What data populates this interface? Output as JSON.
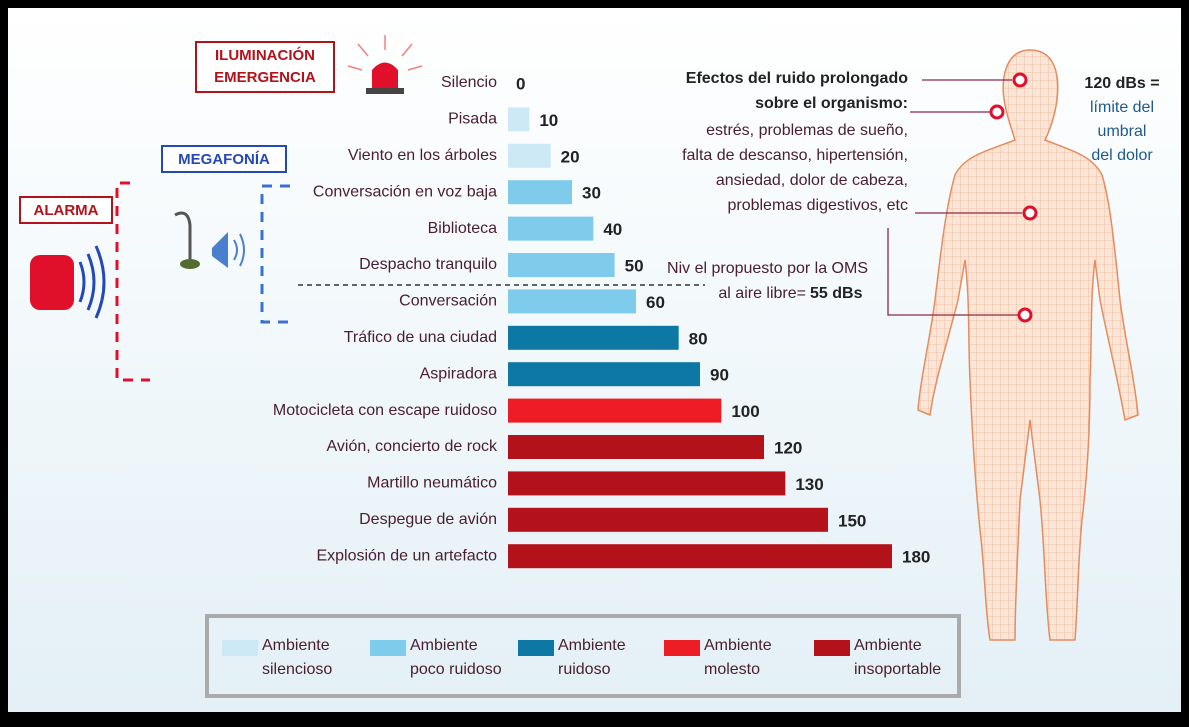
{
  "chart_data": {
    "type": "bar",
    "orientation": "horizontal",
    "categories": [
      "Silencio",
      "Pisada",
      "Viento en los árboles",
      "Conversación en voz baja",
      "Biblioteca",
      "Despacho tranquilo",
      "Conversación",
      "Tráfico de una ciudad",
      "Aspiradora",
      "Motocicleta con escape ruidoso",
      "Avión, concierto de rock",
      "Martillo neumático",
      "Despegue de avión",
      "Explosión de un artefacto"
    ],
    "series": [
      {
        "name": "Ambiente silencioso",
        "color": "#cde9f6",
        "values": [
          0,
          10,
          20,
          null,
          null,
          null,
          null,
          null,
          null,
          null,
          null,
          null,
          null,
          null
        ]
      },
      {
        "name": "Ambiente poco ruidoso",
        "color": "#7ecbeb",
        "values": [
          null,
          null,
          null,
          30,
          40,
          50,
          60,
          null,
          null,
          null,
          null,
          null,
          null,
          null
        ]
      },
      {
        "name": "Ambiente ruidoso",
        "color": "#0e78a4",
        "values": [
          null,
          null,
          null,
          null,
          null,
          null,
          null,
          80,
          90,
          null,
          null,
          null,
          null,
          null
        ]
      },
      {
        "name": "Ambiente molesto",
        "color": "#ee1c25",
        "values": [
          null,
          null,
          null,
          null,
          null,
          null,
          null,
          null,
          null,
          100,
          null,
          null,
          null,
          null
        ]
      },
      {
        "name": "Ambiente insoportable",
        "color": "#b3121b",
        "values": [
          null,
          null,
          null,
          null,
          null,
          null,
          null,
          null,
          null,
          null,
          120,
          130,
          150,
          180
        ]
      }
    ],
    "xlim": [
      0,
      180
    ],
    "annotations": {
      "lighting": [
        "ILUMINACIÓN",
        "EMERGENCIA"
      ],
      "megaphone": "MEGAFONÍA",
      "alarm": "ALARMA",
      "effects_title": [
        "Efectos del ruido prolongado",
        "sobre el  organismo:"
      ],
      "effects": [
        "estrés, problemas de sueño,",
        "falta de descanso, hipertensión,",
        "ansiedad, dolor de cabeza,",
        "problemas digestivos, etc"
      ],
      "oms": [
        "Niv el propuesto por la OMS",
        "al aire libre="
      ],
      "oms_value": "55 dBs",
      "pain_title": "120 dBs =",
      "pain": [
        "límite del",
        "umbral",
        "del dolor"
      ]
    }
  }
}
